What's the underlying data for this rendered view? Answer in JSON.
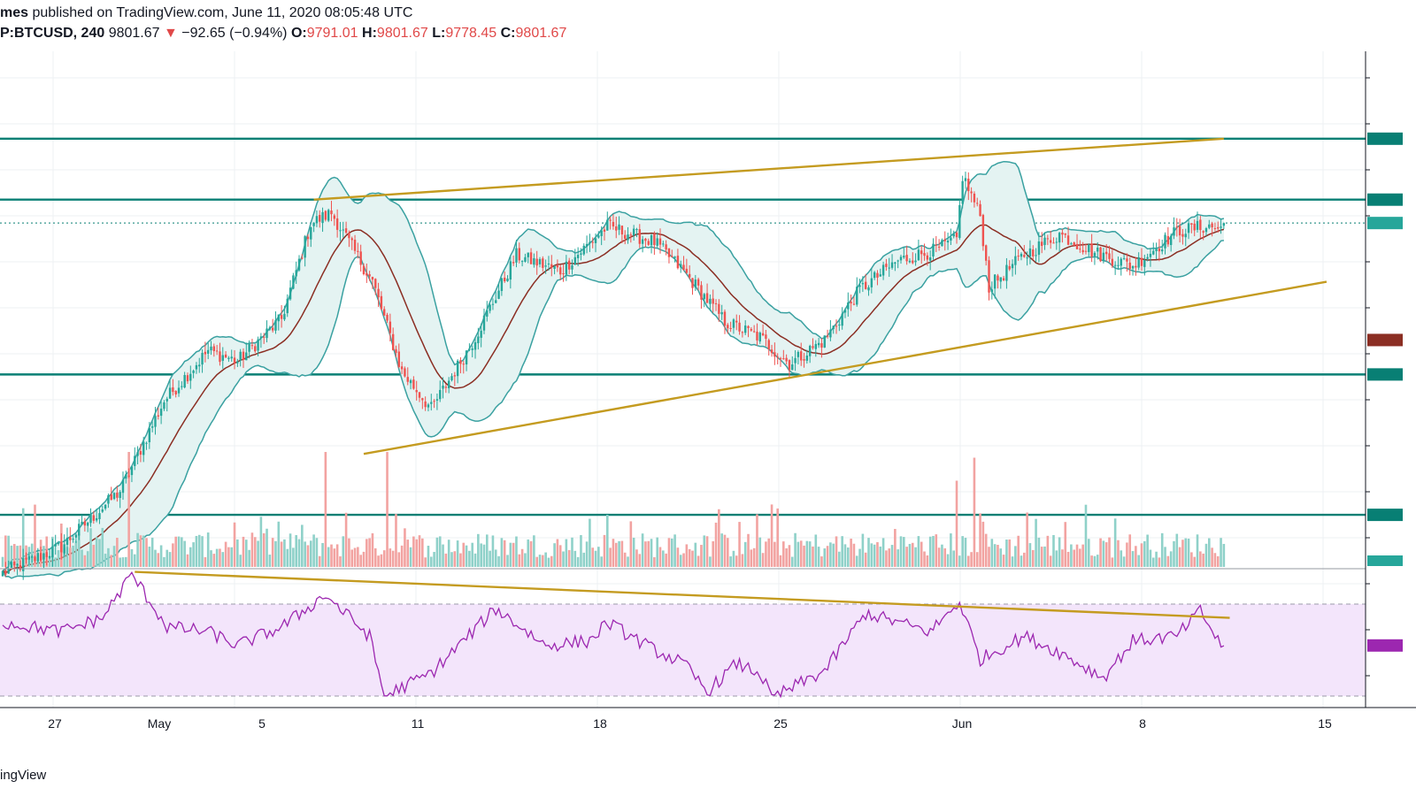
{
  "header": {
    "author_fragment": "mes",
    "published_text": " published on TradingView.com, June 11, 2020 08:05:48 UTC",
    "symbol": "P:BTCUSD, 240",
    "last": "9801.67",
    "change_arrow": "▼",
    "change": "−92.65 (−0.94%)",
    "open_label": "O:",
    "open": "9791.01",
    "high_label": "H:",
    "high": "9801.67",
    "low_label": "L:",
    "low": "9778.45",
    "close_label": "C:",
    "close": "9801.67"
  },
  "footer": {
    "brand_fragment": "ingView"
  },
  "colors": {
    "up": "#26a69a",
    "down": "#ef5350",
    "band": "#3aa1a1",
    "band_fill": "#e4f3f2",
    "basis": "#8b2e23",
    "trend": "#c49b20",
    "level": "#087f74",
    "rsi": "#9c27b0",
    "rsi_fill": "#f3e5fb",
    "grid": "#eef0f3"
  },
  "chart_data": {
    "type": "candlestick",
    "symbol": "BTCUSD",
    "interval": "240",
    "x_ticks": [
      "27",
      "May",
      "5",
      "11",
      "18",
      "25",
      "Jun",
      "8",
      "15"
    ],
    "indicators": [
      "Bollinger Bands",
      "Volume",
      "RSI"
    ],
    "last_price": 9801.67,
    "price_range": [
      8500,
      10450
    ],
    "horizontal_levels": [
      8700,
      9230,
      9890,
      10120
    ],
    "pivots": [
      {
        "x": 0,
        "y": 8480
      },
      {
        "x": 20,
        "y": 8580
      },
      {
        "x": 40,
        "y": 8790
      },
      {
        "x": 55,
        "y": 9130
      },
      {
        "x": 70,
        "y": 9320
      },
      {
        "x": 80,
        "y": 9280
      },
      {
        "x": 95,
        "y": 9440
      },
      {
        "x": 105,
        "y": 9800
      },
      {
        "x": 112,
        "y": 9840
      },
      {
        "x": 126,
        "y": 9580
      },
      {
        "x": 136,
        "y": 9240
      },
      {
        "x": 146,
        "y": 9100
      },
      {
        "x": 160,
        "y": 9350
      },
      {
        "x": 175,
        "y": 9680
      },
      {
        "x": 190,
        "y": 9620
      },
      {
        "x": 206,
        "y": 9790
      },
      {
        "x": 222,
        "y": 9730
      },
      {
        "x": 232,
        "y": 9620
      },
      {
        "x": 246,
        "y": 9430
      },
      {
        "x": 258,
        "y": 9370
      },
      {
        "x": 268,
        "y": 9270
      },
      {
        "x": 280,
        "y": 9360
      },
      {
        "x": 292,
        "y": 9550
      },
      {
        "x": 305,
        "y": 9660
      },
      {
        "x": 318,
        "y": 9700
      },
      {
        "x": 325,
        "y": 9740
      },
      {
        "x": 327,
        "y": 9980
      },
      {
        "x": 333,
        "y": 9830
      },
      {
        "x": 336,
        "y": 9560
      },
      {
        "x": 348,
        "y": 9680
      },
      {
        "x": 360,
        "y": 9760
      },
      {
        "x": 372,
        "y": 9690
      },
      {
        "x": 385,
        "y": 9640
      },
      {
        "x": 400,
        "y": 9770
      },
      {
        "x": 410,
        "y": 9790
      },
      {
        "x": 415,
        "y": 9780
      }
    ],
    "volume_spikes": [
      {
        "i": 43,
        "v": 1.0
      },
      {
        "i": 110,
        "v": 1.0
      },
      {
        "i": 131,
        "v": 1.0
      },
      {
        "i": 325,
        "v": 0.75
      },
      {
        "i": 331,
        "v": 0.95
      }
    ],
    "rsi": {
      "range": [
        25,
        85
      ],
      "upper_band": 70,
      "lower_band": 30,
      "pivots": [
        {
          "x": 0,
          "y": 62
        },
        {
          "x": 20,
          "y": 58
        },
        {
          "x": 34,
          "y": 64
        },
        {
          "x": 44,
          "y": 83
        },
        {
          "x": 56,
          "y": 60
        },
        {
          "x": 70,
          "y": 58
        },
        {
          "x": 80,
          "y": 52
        },
        {
          "x": 95,
          "y": 60
        },
        {
          "x": 110,
          "y": 74
        },
        {
          "x": 125,
          "y": 56
        },
        {
          "x": 130,
          "y": 30
        },
        {
          "x": 146,
          "y": 40
        },
        {
          "x": 168,
          "y": 68
        },
        {
          "x": 185,
          "y": 52
        },
        {
          "x": 200,
          "y": 54
        },
        {
          "x": 206,
          "y": 62
        },
        {
          "x": 222,
          "y": 50
        },
        {
          "x": 232,
          "y": 44
        },
        {
          "x": 240,
          "y": 32
        },
        {
          "x": 250,
          "y": 44
        },
        {
          "x": 258,
          "y": 40
        },
        {
          "x": 262,
          "y": 29
        },
        {
          "x": 280,
          "y": 41
        },
        {
          "x": 294,
          "y": 66
        },
        {
          "x": 305,
          "y": 62
        },
        {
          "x": 316,
          "y": 58
        },
        {
          "x": 326,
          "y": 71
        },
        {
          "x": 333,
          "y": 46
        },
        {
          "x": 348,
          "y": 56
        },
        {
          "x": 360,
          "y": 49
        },
        {
          "x": 375,
          "y": 38
        },
        {
          "x": 385,
          "y": 54
        },
        {
          "x": 400,
          "y": 56
        },
        {
          "x": 408,
          "y": 67
        },
        {
          "x": 415,
          "y": 52
        }
      ]
    },
    "trendlines": [
      {
        "from": {
          "x": 106,
          "y": 9890
        },
        "to": {
          "x": 416,
          "y": 10120
        }
      },
      {
        "from": {
          "x": 123,
          "y": 8930
        },
        "to": {
          "x": 451,
          "y": 9580
        }
      },
      {
        "pane": "rsi",
        "from": {
          "x": 45,
          "y": 84
        },
        "to": {
          "x": 418,
          "y": 64
        }
      }
    ]
  }
}
